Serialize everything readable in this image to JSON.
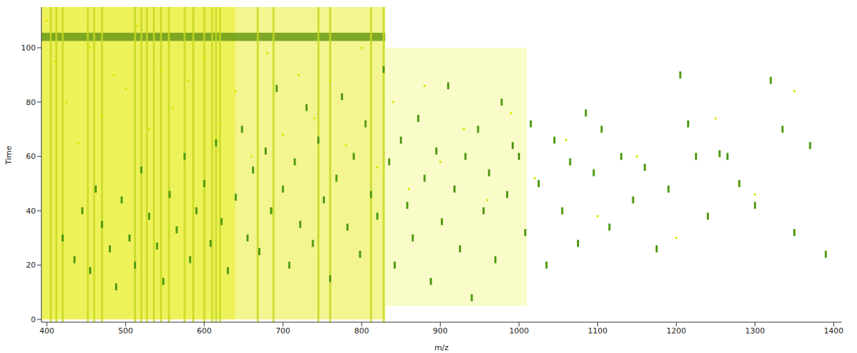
{
  "chart_data": {
    "type": "scatter",
    "xlabel": "m/z",
    "ylabel": "Time",
    "xlim": [
      393,
      1410
    ],
    "ylim": [
      -1,
      115
    ],
    "xticks": [
      400,
      500,
      600,
      700,
      800,
      900,
      1000,
      1100,
      1200,
      1300,
      1400
    ],
    "yticks": [
      0,
      20,
      40,
      60,
      80,
      100
    ],
    "grid": false,
    "regions": [
      {
        "x": [
          393,
          640
        ],
        "y": [
          0,
          115
        ],
        "color": "#eef25a"
      },
      {
        "x": [
          640,
          830
        ],
        "y": [
          0,
          115
        ],
        "color": "#f3f590"
      },
      {
        "x": [
          830,
          1010
        ],
        "y": [
          5,
          100
        ],
        "color": "#f9fbc8"
      }
    ],
    "streaks": [
      405,
      412,
      420,
      452,
      460,
      470,
      512,
      520,
      527,
      536,
      545,
      555,
      575,
      586,
      600,
      610,
      615,
      620,
      668,
      688,
      745,
      760,
      812,
      828
    ],
    "streak_color": "#c4d820",
    "bands": [
      {
        "x": [
          393,
          830
        ],
        "y": [
          102.5,
          105.5
        ],
        "color": "#6a9a18"
      }
    ],
    "series": [
      {
        "color": "#e0e400",
        "marker": "dot",
        "x": [
          400,
          410,
          425,
          440,
          455,
          470,
          485,
          500,
          515,
          530,
          545,
          560,
          580,
          600,
          620,
          640,
          660,
          680,
          700,
          720,
          740,
          760,
          780,
          800,
          820,
          840,
          860,
          880,
          900,
          930,
          960,
          990,
          1020,
          1060,
          1100,
          1150,
          1200,
          1250,
          1300,
          1350
        ],
        "y": [
          110,
          95,
          80,
          65,
          100,
          75,
          90,
          85,
          108,
          70,
          92,
          78,
          88,
          96,
          72,
          84,
          60,
          98,
          68,
          90,
          74,
          88,
          64,
          100,
          56,
          80,
          48,
          86,
          58,
          70,
          44,
          76,
          52,
          66,
          38,
          60,
          30,
          74,
          46,
          84
        ]
      },
      {
        "color": "#4e9a10",
        "marker": "peak",
        "x": [
          420,
          435,
          445,
          455,
          462,
          470,
          480,
          488,
          495,
          505,
          512,
          520,
          530,
          540,
          548,
          556,
          565,
          575,
          582,
          590,
          600,
          608,
          615,
          622,
          630,
          640,
          648,
          655,
          662,
          670,
          678,
          685,
          692,
          700,
          708,
          715,
          722,
          730,
          738,
          745,
          752,
          760,
          768,
          775,
          782,
          790,
          798,
          805,
          812,
          820,
          828,
          835,
          842,
          850,
          858,
          865,
          872,
          880,
          888,
          895,
          902,
          910,
          918,
          925,
          932,
          940,
          948,
          955,
          962,
          970,
          978,
          985,
          992,
          1000,
          1008,
          1015,
          1025,
          1035,
          1045,
          1055,
          1065,
          1075,
          1085,
          1095,
          1105,
          1115,
          1130,
          1145,
          1160,
          1175,
          1190,
          1205,
          1215,
          1225,
          1240,
          1255,
          1265,
          1280,
          1300,
          1320,
          1335,
          1350,
          1370,
          1390
        ],
        "y": [
          30,
          22,
          40,
          18,
          48,
          35,
          26,
          12,
          44,
          30,
          20,
          55,
          38,
          27,
          14,
          46,
          33,
          60,
          22,
          40,
          50,
          28,
          65,
          36,
          18,
          45,
          70,
          30,
          55,
          25,
          62,
          40,
          85,
          48,
          20,
          58,
          35,
          78,
          28,
          66,
          44,
          15,
          52,
          82,
          34,
          60,
          24,
          72,
          46,
          38,
          92,
          58,
          20,
          66,
          42,
          30,
          74,
          52,
          14,
          62,
          36,
          86,
          48,
          26,
          60,
          8,
          70,
          40,
          54,
          22,
          80,
          46,
          64,
          60,
          32,
          72,
          50,
          20,
          66,
          40,
          58,
          28,
          76,
          54,
          70,
          34,
          60,
          44,
          56,
          26,
          48,
          90,
          72,
          60,
          38,
          61,
          60,
          50,
          42,
          88,
          70,
          32,
          64,
          24
        ]
      }
    ]
  }
}
